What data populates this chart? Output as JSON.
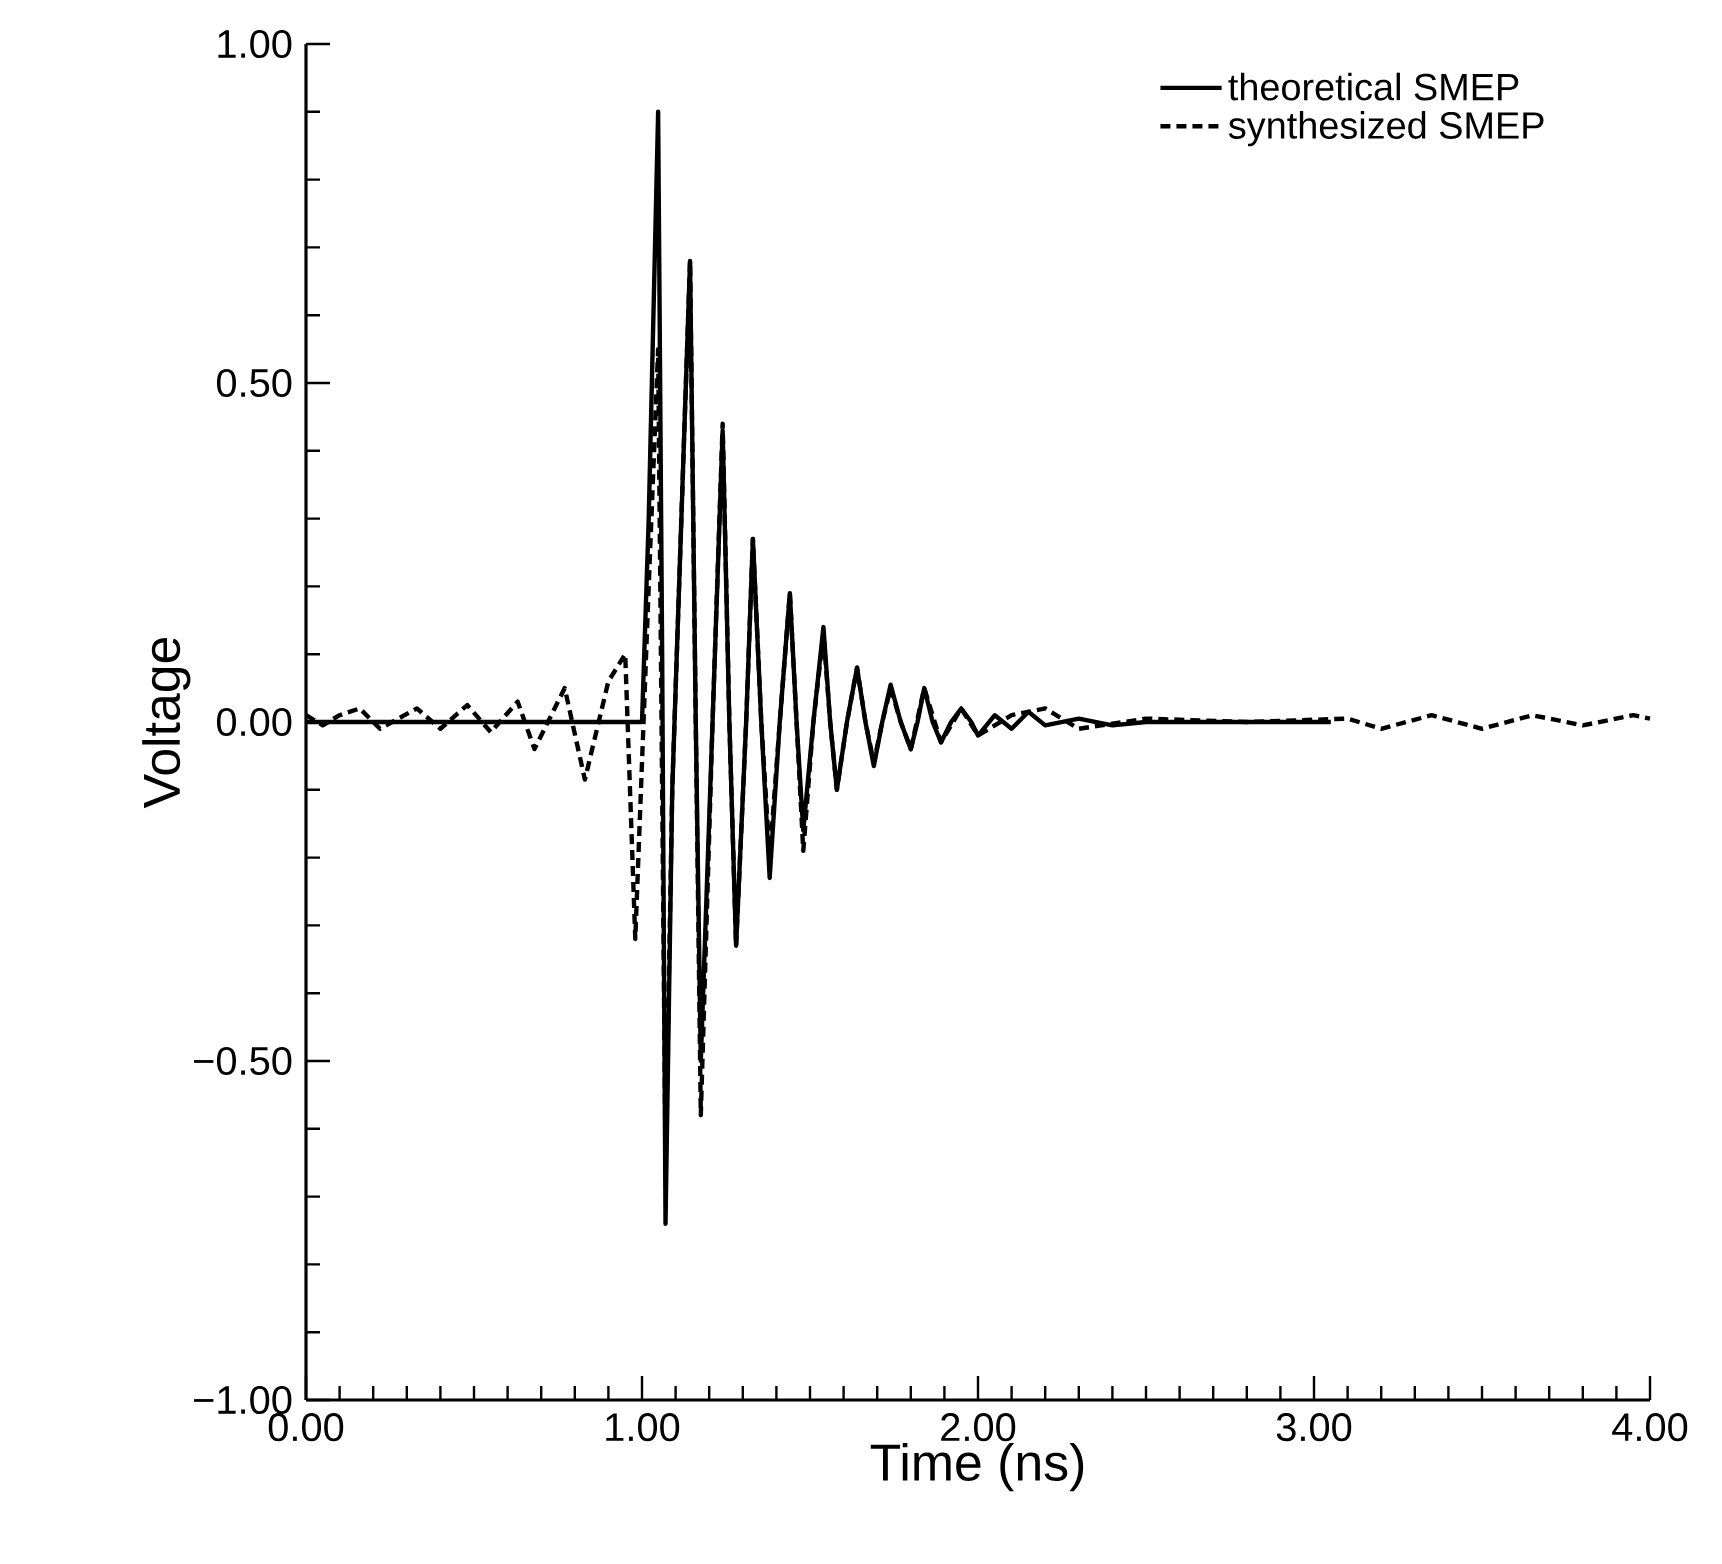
{
  "chart_data": {
    "type": "line",
    "xlabel": "Time  (ns)",
    "ylabel": "Voltage",
    "xlim": [
      0,
      4
    ],
    "ylim": [
      -1,
      1
    ],
    "xticks": [
      {
        "value": 0,
        "label": "0.00"
      },
      {
        "value": 1,
        "label": "1.00"
      },
      {
        "value": 2,
        "label": "2.00"
      },
      {
        "value": 3,
        "label": "3.00"
      },
      {
        "value": 4,
        "label": "4.00"
      }
    ],
    "yticks": [
      {
        "value": -1,
        "label": "−1.00"
      },
      {
        "value": -0.5,
        "label": "−0.50"
      },
      {
        "value": 0,
        "label": "0.00"
      },
      {
        "value": 0.5,
        "label": "0.50"
      },
      {
        "value": 1,
        "label": "1.00"
      }
    ],
    "grid": false,
    "legend": "top right",
    "marker": "none",
    "series": [
      {
        "name": "theoretical SMEP",
        "color": "#000000",
        "line_style": "solid",
        "x": [
          0,
          1.0,
          1.02,
          1.048,
          1.06,
          1.07,
          1.09,
          1.143,
          1.16,
          1.175,
          1.21,
          1.24,
          1.26,
          1.28,
          1.31,
          1.33,
          1.355,
          1.38,
          1.41,
          1.44,
          1.46,
          1.48,
          1.51,
          1.54,
          1.56,
          1.58,
          1.61,
          1.64,
          1.665,
          1.69,
          1.715,
          1.74,
          1.77,
          1.8,
          1.82,
          1.84,
          1.865,
          1.89,
          1.92,
          1.95,
          1.98,
          2.0,
          2.05,
          2.1,
          2.15,
          2.2,
          2.3,
          2.4,
          2.5,
          2.7,
          3.05
        ],
        "values": [
          0,
          0,
          0.3,
          0.9,
          0.1,
          -0.74,
          -0.1,
          0.68,
          0,
          -0.5,
          0,
          0.43,
          0,
          -0.33,
          0,
          0.27,
          0,
          -0.23,
          0,
          0.19,
          0,
          -0.16,
          0,
          0.14,
          0,
          -0.1,
          0,
          0.08,
          0,
          -0.065,
          0,
          0.055,
          0,
          -0.04,
          0,
          0.05,
          0,
          -0.03,
          0,
          0.02,
          0,
          -0.02,
          0.01,
          -0.01,
          0.015,
          -0.005,
          0.005,
          -0.005,
          0,
          0,
          0
        ]
      },
      {
        "name": "synthesized SMEP",
        "color": "#000000",
        "line_style": "dashed",
        "x": [
          0,
          0.05,
          0.1,
          0.16,
          0.22,
          0.33,
          0.4,
          0.48,
          0.55,
          0.63,
          0.68,
          0.77,
          0.83,
          0.9,
          0.95,
          0.98,
          1.02,
          1.048,
          1.07,
          1.09,
          1.143,
          1.16,
          1.175,
          1.21,
          1.24,
          1.26,
          1.28,
          1.31,
          1.33,
          1.355,
          1.38,
          1.41,
          1.44,
          1.46,
          1.48,
          1.51,
          1.54,
          1.56,
          1.58,
          1.61,
          1.64,
          1.665,
          1.69,
          1.715,
          1.74,
          1.77,
          1.8,
          1.84,
          1.89,
          1.95,
          2.0,
          2.1,
          2.2,
          2.3,
          2.5,
          2.8,
          3.1,
          3.2,
          3.35,
          3.5,
          3.65,
          3.8,
          3.95,
          4.0
        ],
        "values": [
          0.01,
          -0.005,
          0.01,
          0.02,
          -0.01,
          0.02,
          -0.01,
          0.025,
          -0.015,
          0.03,
          -0.04,
          0.05,
          -0.085,
          0.06,
          0.1,
          -0.32,
          0.2,
          0.55,
          -0.65,
          -0.1,
          0.68,
          0,
          -0.58,
          0,
          0.44,
          0,
          -0.33,
          0,
          0.27,
          0,
          -0.2,
          0,
          0.19,
          0,
          -0.19,
          0,
          0.13,
          0,
          -0.1,
          0,
          0.08,
          0,
          -0.06,
          0,
          0.05,
          0,
          -0.04,
          0.05,
          -0.03,
          0.02,
          -0.02,
          0.01,
          0.02,
          -0.01,
          0.005,
          0,
          0.005,
          -0.01,
          0.01,
          -0.01,
          0.01,
          -0.005,
          0.01,
          0.005
        ]
      }
    ]
  }
}
